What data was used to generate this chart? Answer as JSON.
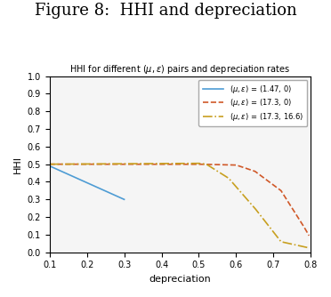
{
  "title": "Figure 8:  HHI and depreciation",
  "subtitle": "HHI for different ($mu$, $epsilon$) pairs and depreciation rates",
  "xlabel": "depreciation",
  "ylabel": "HHI",
  "xlim": [
    0.1,
    0.8
  ],
  "ylim": [
    0.0,
    1.0
  ],
  "xticks": [
    0.1,
    0.2,
    0.3,
    0.4,
    0.5,
    0.6,
    0.7,
    0.8
  ],
  "yticks": [
    0.0,
    0.1,
    0.2,
    0.3,
    0.4,
    0.5,
    0.6,
    0.7,
    0.8,
    0.9,
    1.0
  ],
  "line1": {
    "x": [
      0.1,
      0.3
    ],
    "y": [
      0.49,
      0.3
    ],
    "color": "#4e9cd4",
    "linestyle": "-",
    "linewidth": 1.2,
    "label": "($mu$, $epsilon$) = (1.47, 0)"
  },
  "line2": {
    "x": [
      0.1,
      0.5,
      0.6,
      0.65,
      0.72,
      0.78,
      0.795
    ],
    "y": [
      0.5,
      0.5,
      0.495,
      0.46,
      0.35,
      0.15,
      0.095
    ],
    "color": "#d05828",
    "linestyle": "--",
    "linewidth": 1.2,
    "label": "($mu$, $epsilon$) = (17.3, 0)"
  },
  "line3": {
    "x": [
      0.1,
      0.5,
      0.52,
      0.58,
      0.65,
      0.72,
      0.795
    ],
    "y": [
      0.5,
      0.505,
      0.5,
      0.42,
      0.25,
      0.06,
      0.025
    ],
    "color": "#c8a020",
    "linestyle": "-.",
    "linewidth": 1.2,
    "label": "($mu$, $epsilon$) = (17.3, 16.6)"
  },
  "background_color": "#f5f5f5",
  "title_fontsize": 13,
  "subtitle_fontsize": 7,
  "label_fontsize": 8,
  "tick_fontsize": 7,
  "legend_fontsize": 6.0
}
